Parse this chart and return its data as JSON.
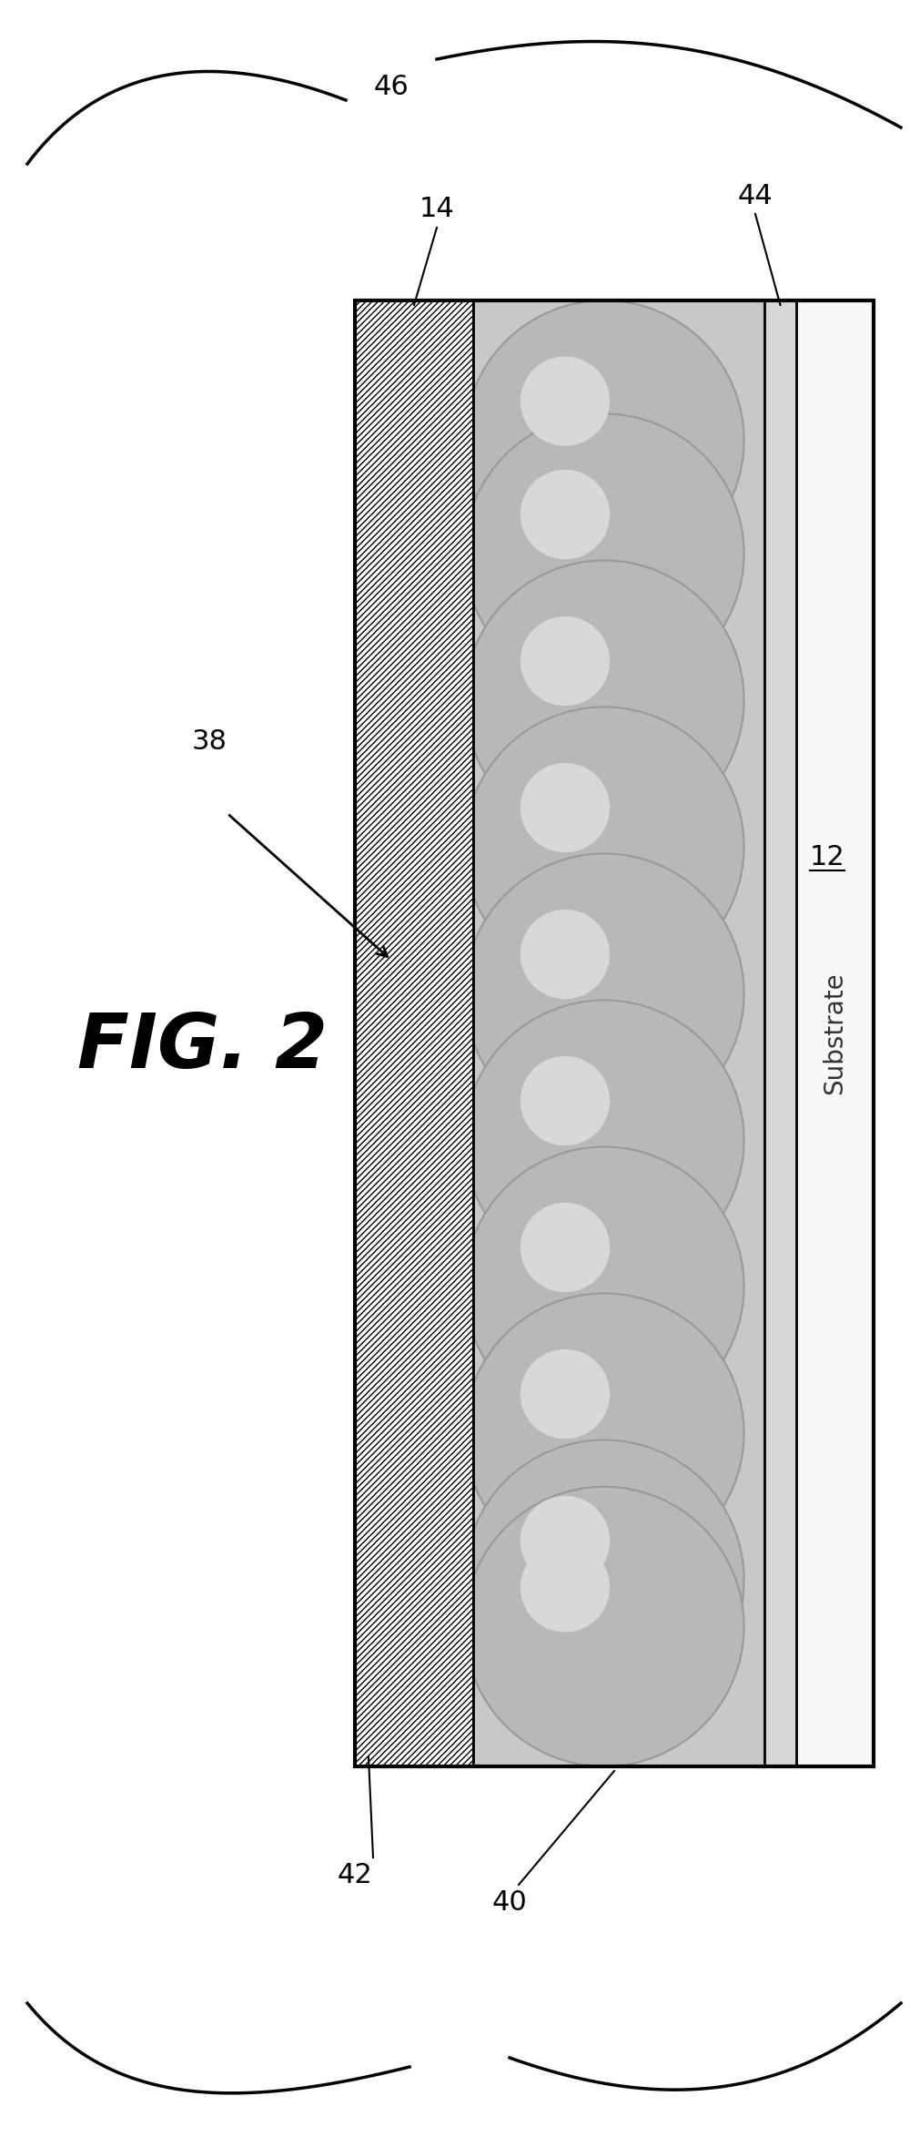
{
  "fig_label": "FIG. 2",
  "background_color": "#ffffff",
  "line_color": "#000000",
  "hatch_fill": "#ffffff",
  "substrate_fill": "#f0f0f0",
  "bump_color": "#b8b8b8",
  "bump_highlight": "#d8d8d8",
  "bump_edge": "#888888",
  "label_46": "46",
  "label_44": "44",
  "label_14": "14",
  "label_12": "12",
  "label_42": "42",
  "label_40": "40",
  "label_38": "38",
  "substrate_text": "Substrate"
}
